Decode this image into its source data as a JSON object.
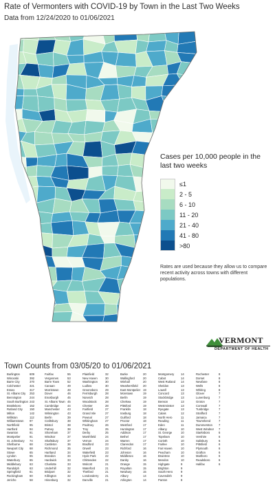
{
  "title": "Rate of Vermonters with COVID-19 by Town in the Last Two Weeks",
  "subtitle": "Data from 12/24/2020 to 01/06/2021",
  "legend": {
    "title": "Cases per 10,000 people in the last two weeks",
    "bins": [
      {
        "label": "≤1",
        "color": "#f1f9ec"
      },
      {
        "label": "2 - 5",
        "color": "#c9ecc9"
      },
      {
        "label": "6 - 10",
        "color": "#a7dcc1"
      },
      {
        "label": "11 - 20",
        "color": "#7cc9c4"
      },
      {
        "label": "21 - 40",
        "color": "#4eaacb"
      },
      {
        "label": "41 - 80",
        "color": "#2279b5"
      },
      {
        "label": ">80",
        "color": "#0c4f8e"
      }
    ]
  },
  "note": "Rates are used because they allow us to compare recent activity across towns with different populations.",
  "logo": {
    "name": "VERMONT",
    "dept": "DEPARTMENT OF HEALTH"
  },
  "counts_title": "Town Counts from 03/05/20 to 01/06/2021",
  "town_counts": [
    [
      [
        "Burlington",
        "609"
      ],
      [
        "Winooski",
        "392"
      ],
      [
        "Barre City",
        "370"
      ],
      [
        "Colchester",
        "321"
      ],
      [
        "Essex",
        "317"
      ],
      [
        "St. Albans City",
        "253"
      ],
      [
        "Bennington",
        "244"
      ],
      [
        "South Burlington",
        "243"
      ],
      [
        "Brattleboro",
        "152"
      ],
      [
        "Rutland City",
        "150"
      ],
      [
        "Milton",
        "142"
      ],
      [
        "Williston",
        "112"
      ],
      [
        "Williamstown",
        "97"
      ],
      [
        "Northfield",
        "95"
      ],
      [
        "Hartford",
        "94"
      ],
      [
        "Swanton",
        "91"
      ],
      [
        "Montpelier",
        "91"
      ],
      [
        "St. Johnsbury",
        "74"
      ],
      [
        "Shelburne",
        "68"
      ],
      [
        "Newport City",
        "68"
      ],
      [
        "Stowe",
        "65"
      ],
      [
        "Lyndon",
        "65"
      ],
      [
        "Waterbury",
        "65"
      ],
      [
        "Middlebury",
        "63"
      ],
      [
        "Randolph",
        "63"
      ],
      [
        "Springfield",
        "61"
      ],
      [
        "Rockingham",
        "60"
      ],
      [
        "Jericho",
        "58"
      ]
    ],
    [
      [
        "Fairfax",
        "55"
      ],
      [
        "Vergennes",
        "53"
      ],
      [
        "Barre Town",
        "52"
      ],
      [
        "Canaan",
        "49"
      ],
      [
        "Morristown",
        "48"
      ],
      [
        "Dover",
        "46"
      ],
      [
        "Enosburgh",
        "45"
      ],
      [
        "St. Albans Town",
        "45"
      ],
      [
        "Cambridge",
        "44"
      ],
      [
        "Manchester",
        "43"
      ],
      [
        "Wilmington",
        "43"
      ],
      [
        "Berlin",
        "39"
      ],
      [
        "Craftsbury",
        "38"
      ],
      [
        "Bristol",
        "38"
      ],
      [
        "Putney",
        "38"
      ],
      [
        "Shoreham",
        "37"
      ],
      [
        "Windsor",
        "37"
      ],
      [
        "Shaftsbury",
        "37"
      ],
      [
        "Castleton",
        "36"
      ],
      [
        "Richmond",
        "35"
      ],
      [
        "Hartland",
        "34"
      ],
      [
        "Brandon",
        "34"
      ],
      [
        "Hardwick",
        "33"
      ],
      [
        "Charlotte",
        "33"
      ],
      [
        "Underhill",
        "32"
      ],
      [
        "Bridport",
        "32"
      ],
      [
        "Killington",
        "32"
      ],
      [
        "Hinesburg",
        "32"
      ]
    ],
    [
      [
        "Plainfield",
        "32"
      ],
      [
        "New Haven",
        "30"
      ],
      [
        "Washington",
        "30"
      ],
      [
        "Ludlow",
        "30"
      ],
      [
        "Greensboro",
        "29"
      ],
      [
        "Ferrisburgh",
        "28"
      ],
      [
        "Norwich",
        "28"
      ],
      [
        "Woodstock",
        "28"
      ],
      [
        "Chester",
        "28"
      ],
      [
        "Fairfield",
        "27"
      ],
      [
        "Grand Isle",
        "27"
      ],
      [
        "Pownal",
        "27"
      ],
      [
        "Whitingham",
        "27"
      ],
      [
        "Poultney",
        "26"
      ],
      [
        "Troy",
        "25"
      ],
      [
        "Derby",
        "25"
      ],
      [
        "Marshfield",
        "24"
      ],
      [
        "Vernon",
        "24"
      ],
      [
        "Bradford",
        "23"
      ],
      [
        "Orwell",
        "23"
      ],
      [
        "Wakefield",
        "23"
      ],
      [
        "Hyde Park",
        "22"
      ],
      [
        "Chittenden",
        "22"
      ],
      [
        "Wolcott",
        "21"
      ],
      [
        "Waterford",
        "21"
      ],
      [
        "Thetford",
        "21"
      ],
      [
        "Londonderry",
        "21"
      ],
      [
        "Danville",
        "21"
      ]
    ],
    [
      [
        "Burke",
        "20"
      ],
      [
        "Wallingford",
        "20"
      ],
      [
        "Winhall",
        "20"
      ],
      [
        "Weathersfield",
        "20"
      ],
      [
        "East Montpelier",
        "19"
      ],
      [
        "Moretown",
        "19"
      ],
      [
        "Berlin",
        "19"
      ],
      [
        "Chelsea",
        "19"
      ],
      [
        "Pittsford",
        "19"
      ],
      [
        "Franklin",
        "18"
      ],
      [
        "Irasburg",
        "18"
      ],
      [
        "Guilford",
        "18"
      ],
      [
        "Proctor",
        "18"
      ],
      [
        "Westford",
        "17"
      ],
      [
        "Huntington",
        "17"
      ],
      [
        "Addison",
        "17"
      ],
      [
        "Bethel",
        "17"
      ],
      [
        "Warren",
        "17"
      ],
      [
        "Clarendon",
        "17"
      ],
      [
        "Richford",
        "16"
      ],
      [
        "Johnson",
        "16"
      ],
      [
        "Middlesex",
        "16"
      ],
      [
        "Danby",
        "16"
      ],
      [
        "Orange",
        "15"
      ],
      [
        "Royalton",
        "15"
      ],
      [
        "Newbury",
        "15"
      ],
      [
        "Albury",
        "14"
      ],
      [
        "Arlington",
        "14"
      ]
    ],
    [
      [
        "Montgomery",
        "14"
      ],
      [
        "Cabot",
        "14"
      ],
      [
        "West Rutland",
        "14"
      ],
      [
        "Sheldon",
        "13"
      ],
      [
        "Lowell",
        "13"
      ],
      [
        "Concord",
        "13"
      ],
      [
        "Stockbridge",
        "13"
      ],
      [
        "Benson",
        "13"
      ],
      [
        "Westminster",
        "13"
      ],
      [
        "Ryegate",
        "13"
      ],
      [
        "Calais",
        "12"
      ],
      [
        "North Hero",
        "11"
      ],
      [
        "Reading",
        "11"
      ],
      [
        "Eden",
        "11"
      ],
      [
        "Albany",
        "10"
      ],
      [
        "St. George",
        "10"
      ],
      [
        "Topsham",
        "10"
      ],
      [
        "Corinth",
        "10"
      ],
      [
        "Fairlee",
        "10"
      ],
      [
        "Fair Haven",
        "10"
      ],
      [
        "Peacham",
        "10"
      ],
      [
        "Braintree",
        "10"
      ],
      [
        "Mendon",
        "10"
      ],
      [
        "Highgate",
        "9"
      ],
      [
        "Brighton",
        "9"
      ],
      [
        "South Hero",
        "9"
      ],
      [
        "Cavendish",
        "9"
      ],
      [
        "Panton",
        "8"
      ]
    ],
    [
      [
        "Rochester",
        "8"
      ],
      [
        "Dorset",
        "8"
      ],
      [
        "Newfane",
        "8"
      ],
      [
        "Wells",
        "8"
      ],
      [
        "Whiting",
        "8"
      ],
      [
        "Glover",
        "7"
      ],
      [
        "Lunenburg",
        "7"
      ],
      [
        "Groton",
        "7"
      ],
      [
        "Cornwall",
        "7"
      ],
      [
        "Tunbridge",
        "7"
      ],
      [
        "Strafford",
        "7"
      ],
      [
        "Jamaica",
        "7"
      ],
      [
        "Townshend",
        "7"
      ],
      [
        "Dummerston",
        "7"
      ],
      [
        "West Windsor",
        "7"
      ],
      [
        "Starksboro",
        "6"
      ],
      [
        "Vershire",
        "6"
      ],
      [
        "Salisbury",
        "6"
      ],
      [
        "Pittsfield",
        "6"
      ],
      [
        "Plymouth",
        "6"
      ],
      [
        "Grafton",
        "6"
      ],
      [
        "Marlboro",
        "6"
      ],
      [
        "Readsboro",
        "6"
      ],
      [
        "Halifax",
        "6"
      ]
    ]
  ]
}
